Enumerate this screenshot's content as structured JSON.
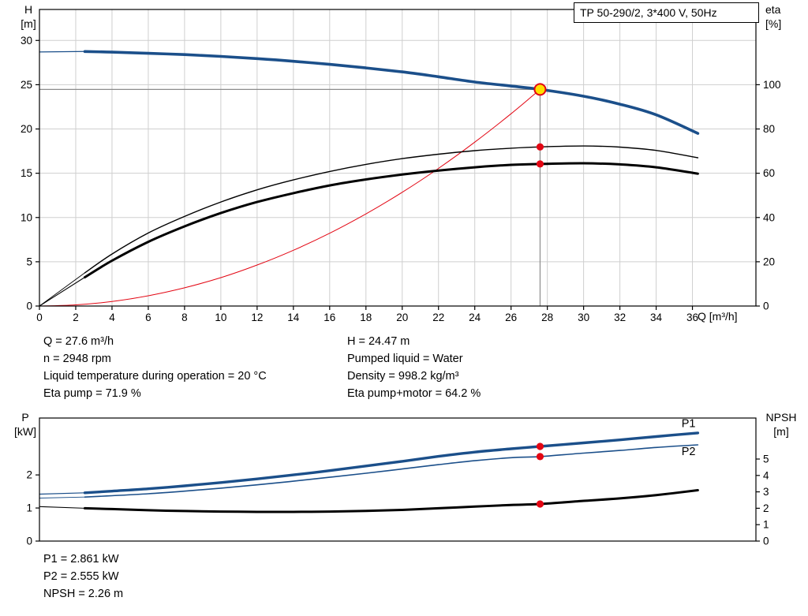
{
  "title": "TP 50-290/2, 3*400 V, 50Hz",
  "colors": {
    "curve_blue": "#1b4f8a",
    "curve_black": "#000000",
    "marker_red": "#e30613",
    "op_yellow": "#ffdf00",
    "grid_gray": "#cfcfcf",
    "crosshair_gray": "#8c8c8c"
  },
  "axis_corner_labels": {
    "h": [
      "H",
      "[m]"
    ],
    "eta": [
      "eta",
      "[%]"
    ],
    "q": "Q [m³/h]",
    "p": [
      "P",
      "[kW]"
    ],
    "npsh": [
      "NPSH",
      "[m]"
    ]
  },
  "info_left": [
    "Q = 27.6 m³/h",
    "n = 2948 rpm",
    "Liquid temperature during operation = 20 °C",
    "Eta pump = 71.9 %"
  ],
  "info_right": [
    "H = 24.47 m",
    "Pumped liquid = Water",
    "Density = 998.2 kg/m³",
    "Eta pump+motor = 64.2 %"
  ],
  "info_bottom": [
    "P1 = 2.861 kW",
    "P2 = 2.555 kW",
    "NPSH = 2.26 m"
  ],
  "chart_data": [
    {
      "type": "line",
      "name": "qh-eta-chart",
      "title": "TP 50-290/2, 3*400 V, 50Hz",
      "grid": true,
      "x_axis": {
        "label": "Q [m³/h]",
        "min": 0,
        "max": 39.5,
        "ticks": [
          0,
          2,
          4,
          6,
          8,
          10,
          12,
          14,
          16,
          18,
          20,
          22,
          24,
          26,
          28,
          30,
          32,
          34,
          36
        ]
      },
      "y_left": {
        "label": "H [m]",
        "min": 0,
        "max": 33.5,
        "ticks": [
          0,
          5,
          10,
          15,
          20,
          25,
          30
        ]
      },
      "y_right": {
        "label": "eta [%]",
        "min": 0,
        "max": 134,
        "ticks": [
          0,
          20,
          40,
          60,
          80,
          100
        ]
      },
      "crosshair": {
        "q": 27.6,
        "value": 24.47
      },
      "series": [
        {
          "name": "system-curve",
          "axis": "left",
          "color": "#e30613",
          "width": 1,
          "points": [
            [
              0,
              0
            ],
            [
              2,
              0.13
            ],
            [
              4,
              0.51
            ],
            [
              6,
              1.16
            ],
            [
              8,
              2.06
            ],
            [
              10,
              3.21
            ],
            [
              12,
              4.63
            ],
            [
              14,
              6.3
            ],
            [
              16,
              8.22
            ],
            [
              18,
              10.41
            ],
            [
              20,
              12.85
            ],
            [
              22,
              15.55
            ],
            [
              24,
              18.51
            ],
            [
              26,
              21.72
            ],
            [
              27.6,
              24.47
            ]
          ]
        },
        {
          "name": "eta-pump",
          "axis": "right",
          "color": "#000000",
          "width": 1.4,
          "thin_until": 2.5,
          "points": [
            [
              0,
              0
            ],
            [
              2.5,
              15
            ],
            [
              4,
              23.5
            ],
            [
              6,
              33
            ],
            [
              8,
              40.5
            ],
            [
              10,
              47
            ],
            [
              12,
              52.5
            ],
            [
              14,
              57
            ],
            [
              16,
              60.8
            ],
            [
              18,
              64
            ],
            [
              20,
              66.6
            ],
            [
              22,
              68.6
            ],
            [
              24,
              70.2
            ],
            [
              26,
              71.3
            ],
            [
              27.6,
              71.9
            ],
            [
              30,
              72.3
            ],
            [
              32,
              71.8
            ],
            [
              34,
              70.3
            ],
            [
              36.3,
              67
            ]
          ]
        },
        {
          "name": "eta-pump-motor",
          "axis": "right",
          "color": "#000000",
          "width": 3,
          "thin_until": 2.5,
          "points": [
            [
              0,
              0
            ],
            [
              2.5,
              13
            ],
            [
              4,
              20.5
            ],
            [
              6,
              29
            ],
            [
              8,
              36
            ],
            [
              10,
              42
            ],
            [
              12,
              47
            ],
            [
              14,
              51
            ],
            [
              16,
              54.5
            ],
            [
              18,
              57.2
            ],
            [
              20,
              59.4
            ],
            [
              22,
              61.2
            ],
            [
              24,
              62.7
            ],
            [
              26,
              63.8
            ],
            [
              27.6,
              64.2
            ],
            [
              30,
              64.5
            ],
            [
              32,
              64
            ],
            [
              34,
              62.7
            ],
            [
              36.3,
              59.8
            ]
          ]
        },
        {
          "name": "qh-curve",
          "axis": "left",
          "color": "#1b4f8a",
          "width": 3.6,
          "thin_until": 2.5,
          "points": [
            [
              0,
              28.7
            ],
            [
              2.5,
              28.75
            ],
            [
              4,
              28.68
            ],
            [
              6,
              28.55
            ],
            [
              8,
              28.4
            ],
            [
              10,
              28.2
            ],
            [
              12,
              27.95
            ],
            [
              14,
              27.65
            ],
            [
              16,
              27.3
            ],
            [
              18,
              26.9
            ],
            [
              20,
              26.45
            ],
            [
              22,
              25.9
            ],
            [
              24,
              25.3
            ],
            [
              26,
              24.85
            ],
            [
              27.6,
              24.47
            ],
            [
              30,
              23.7
            ],
            [
              32,
              22.8
            ],
            [
              34,
              21.6
            ],
            [
              36.3,
              19.5
            ]
          ]
        }
      ],
      "markers": [
        {
          "q": 27.6,
          "value": 71.9,
          "axis": "right",
          "style": "dot"
        },
        {
          "q": 27.6,
          "value": 64.2,
          "axis": "right",
          "style": "dot"
        },
        {
          "q": 27.6,
          "value": 24.47,
          "axis": "left",
          "style": "op"
        }
      ]
    },
    {
      "type": "line",
      "name": "power-npsh-chart",
      "grid": false,
      "x_axis": {
        "label": "",
        "min": 0,
        "max": 39.5,
        "ticks": []
      },
      "y_left": {
        "label": "P [kW]",
        "min": 0,
        "max": 3.72,
        "ticks": [
          0,
          1,
          2
        ]
      },
      "y_right": {
        "label": "NPSH [m]",
        "min": 0,
        "max": 7.5,
        "ticks": [
          0,
          1,
          2,
          3,
          4,
          5
        ]
      },
      "series": [
        {
          "name": "p1",
          "axis": "left",
          "color": "#1b4f8a",
          "width": 3.4,
          "thin_until": 2.5,
          "points": [
            [
              0,
              1.42
            ],
            [
              2.5,
              1.46
            ],
            [
              4,
              1.51
            ],
            [
              6,
              1.58
            ],
            [
              8,
              1.67
            ],
            [
              10,
              1.77
            ],
            [
              12,
              1.88
            ],
            [
              14,
              2.0
            ],
            [
              16,
              2.13
            ],
            [
              18,
              2.27
            ],
            [
              20,
              2.41
            ],
            [
              22,
              2.56
            ],
            [
              24,
              2.69
            ],
            [
              26,
              2.79
            ],
            [
              27.6,
              2.861
            ],
            [
              30,
              2.97
            ],
            [
              32,
              3.06
            ],
            [
              34,
              3.16
            ],
            [
              36.3,
              3.27
            ]
          ],
          "label": {
            "text": "P1",
            "q": 35.4,
            "value": 3.45
          }
        },
        {
          "name": "p2",
          "axis": "left",
          "color": "#1b4f8a",
          "width": 1.6,
          "thin_until": 2.5,
          "points": [
            [
              0,
              1.3
            ],
            [
              2.5,
              1.33
            ],
            [
              4,
              1.37
            ],
            [
              6,
              1.43
            ],
            [
              8,
              1.51
            ],
            [
              10,
              1.6
            ],
            [
              12,
              1.7
            ],
            [
              14,
              1.81
            ],
            [
              16,
              1.93
            ],
            [
              18,
              2.05
            ],
            [
              20,
              2.18
            ],
            [
              22,
              2.31
            ],
            [
              24,
              2.43
            ],
            [
              26,
              2.52
            ],
            [
              27.6,
              2.555
            ],
            [
              30,
              2.66
            ],
            [
              32,
              2.74
            ],
            [
              34,
              2.83
            ],
            [
              36.3,
              2.91
            ]
          ],
          "label": {
            "text": "P2",
            "q": 35.4,
            "value": 2.6
          }
        },
        {
          "name": "npsh",
          "axis": "right",
          "color": "#000000",
          "width": 3,
          "thin_until": 2.5,
          "points": [
            [
              0,
              2.1
            ],
            [
              2.5,
              2.0
            ],
            [
              4,
              1.95
            ],
            [
              6,
              1.88
            ],
            [
              8,
              1.83
            ],
            [
              10,
              1.8
            ],
            [
              12,
              1.78
            ],
            [
              14,
              1.78
            ],
            [
              16,
              1.8
            ],
            [
              18,
              1.84
            ],
            [
              20,
              1.9
            ],
            [
              22,
              2.0
            ],
            [
              24,
              2.1
            ],
            [
              26,
              2.2
            ],
            [
              27.6,
              2.26
            ],
            [
              30,
              2.45
            ],
            [
              32,
              2.6
            ],
            [
              34,
              2.8
            ],
            [
              36.3,
              3.1
            ]
          ]
        }
      ],
      "markers": [
        {
          "q": 27.6,
          "value": 2.861,
          "axis": "left",
          "style": "dot"
        },
        {
          "q": 27.6,
          "value": 2.555,
          "axis": "left",
          "style": "dot"
        },
        {
          "q": 27.6,
          "value": 2.26,
          "axis": "right",
          "style": "dot"
        }
      ]
    }
  ]
}
